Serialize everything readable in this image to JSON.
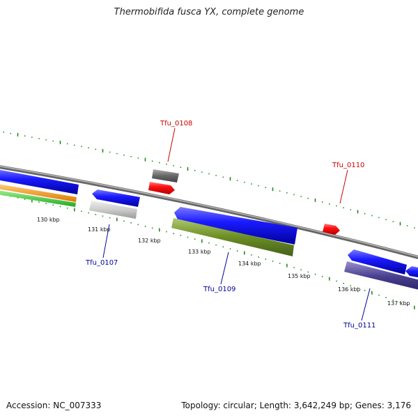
{
  "title": "Thermobifida fusca YX, complete genome",
  "accession_text": "Accession: NC_007333",
  "summary_text": "Topology: circular; Length: 3,642,249 bp; Genes: 3,176",
  "colors": {
    "backbone": "#888888",
    "ticks": "#1e8a1e",
    "forward_label": "#cc0000",
    "reverse_label": "#000099"
  },
  "scale_labels": [
    "130 kbp",
    "131 kbp",
    "132 kbp",
    "133 kbp",
    "134 kbp",
    "135 kbp",
    "136 kbp",
    "137 kbp"
  ],
  "gene_labels": [
    {
      "id": "Tfu_0107",
      "strand": "reverse"
    },
    {
      "id": "Tfu_0108",
      "strand": "forward"
    },
    {
      "id": "Tfu_0109",
      "strand": "reverse"
    },
    {
      "id": "Tfu_0110",
      "strand": "forward"
    },
    {
      "id": "Tfu_0111",
      "strand": "reverse"
    }
  ]
}
